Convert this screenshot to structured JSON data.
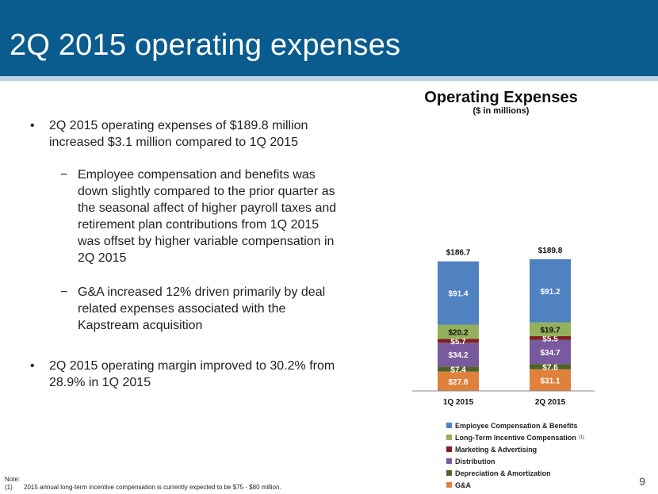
{
  "slide": {
    "title": "2Q 2015 operating expenses",
    "page_number": "9"
  },
  "bullets": [
    {
      "level": 1,
      "text": "2Q 2015 operating expenses of $189.8 million increased $3.1 million compared to 1Q 2015"
    },
    {
      "level": 2,
      "text": "Employee compensation and benefits was down slightly compared to the prior quarter as the seasonal affect of higher payroll taxes and retirement plan contributions from 1Q 2015 was offset by higher variable compensation in 2Q 2015"
    },
    {
      "level": 2,
      "text": "G&A increased 12% driven primarily by deal related expenses associated with the Kapstream acquisition"
    },
    {
      "level": 1,
      "text": "2Q 2015 operating margin improved to 30.2% from 28.9% in 1Q 2015"
    }
  ],
  "bullet_marks": {
    "level1": "•",
    "level2": "−"
  },
  "note": {
    "label": "Note:",
    "items": [
      {
        "num": "(1)",
        "text": "2015 annual long-term incentive compensation is currently expected to be $75 - $80 million."
      }
    ]
  },
  "chart_data": {
    "type": "bar",
    "stacked": true,
    "title": "Operating Expenses",
    "subtitle": "($ in millions)",
    "categories": [
      "1Q 2015",
      "2Q 2015"
    ],
    "totals": [
      186.7,
      189.8
    ],
    "total_labels": [
      "$186.7",
      "$189.8"
    ],
    "series": [
      {
        "name": "G&A",
        "values": [
          27.8,
          31.1
        ],
        "labels": [
          "$27.8",
          "$31.1"
        ],
        "color": "#e0803c"
      },
      {
        "name": "Depreciation & Amortization",
        "values": [
          7.4,
          7.6
        ],
        "labels": [
          "$7.4",
          "$7.6"
        ],
        "color": "#4f6228"
      },
      {
        "name": "Distribution",
        "values": [
          34.2,
          34.7
        ],
        "labels": [
          "$34.2",
          "$34.7"
        ],
        "color": "#7a5a9e"
      },
      {
        "name": "Marketing & Advertising",
        "values": [
          5.7,
          5.5
        ],
        "labels": [
          "$5.7",
          "$5.5"
        ],
        "color": "#7f1f24"
      },
      {
        "name": "Long-Term Incentive Compensation",
        "values": [
          20.2,
          19.7
        ],
        "labels": [
          "$20.2",
          "$19.7"
        ],
        "color": "#94b05a"
      },
      {
        "name": "Employee Compensation & Benefits",
        "values": [
          91.4,
          91.2
        ],
        "labels": [
          "$91.4",
          "$91.2"
        ],
        "color": "#5081c0"
      }
    ],
    "legend": [
      {
        "name": "Employee Compensation & Benefits",
        "color": "#5081c0",
        "sup": ""
      },
      {
        "name": "Long-Term Incentive Compensation",
        "color": "#94b05a",
        "sup": "(1)"
      },
      {
        "name": "Marketing & Advertising",
        "color": "#7f1f24",
        "sup": ""
      },
      {
        "name": "Distribution",
        "color": "#7a5a9e",
        "sup": ""
      },
      {
        "name": "Depreciation & Amortization",
        "color": "#4f6228",
        "sup": ""
      },
      {
        "name": "G&A",
        "color": "#e0803c",
        "sup": ""
      }
    ],
    "legend_position": "bottom",
    "grid": false
  }
}
